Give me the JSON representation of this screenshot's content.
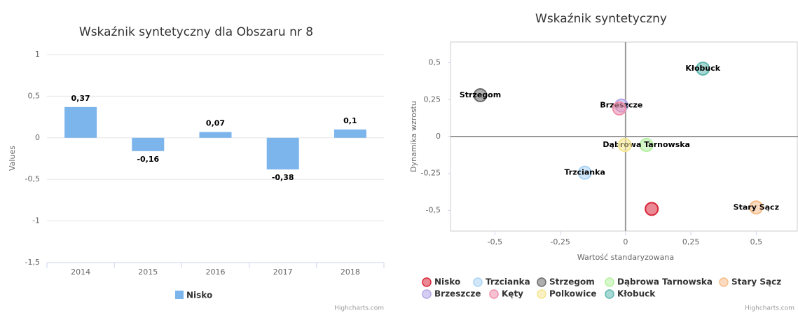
{
  "chart_data": [
    {
      "type": "bar",
      "title": "Wskaźnik syntetyczny dla Obszaru nr 8",
      "y_label": "Values",
      "categories": [
        "2014",
        "2015",
        "2016",
        "2017",
        "2018"
      ],
      "series": [
        {
          "name": "Nisko",
          "color": "#7cb5ec",
          "values": [
            0.37,
            -0.16,
            0.07,
            -0.38,
            0.1
          ],
          "value_labels": [
            "0,37",
            "-0,16",
            "0,07",
            "-0,38",
            "0,1"
          ]
        }
      ],
      "ylim": [
        -1.5,
        1
      ],
      "yticks": [
        {
          "value": -1.5,
          "label": "-1,5"
        },
        -1,
        {
          "value": -0.5,
          "label": "-0,5"
        },
        0,
        {
          "value": 0.5,
          "label": "0,5"
        },
        1
      ],
      "grid": true,
      "legend": "bottom",
      "credits": "Highcharts.com"
    },
    {
      "type": "scatter",
      "title": "Wskaźnik syntetyczny",
      "x_label": "Wartość standaryzowana",
      "y_label": "Dynamika wzrostu",
      "xlim": [
        -0.67,
        0.66
      ],
      "ylim": [
        -0.64,
        0.64
      ],
      "xticks": [
        {
          "value": -0.5,
          "label": "-0,5"
        },
        {
          "value": -0.25,
          "label": "-0,25"
        },
        0,
        {
          "value": 0.25,
          "label": "0,25"
        },
        {
          "value": 0.5,
          "label": "0,5"
        }
      ],
      "yticks": [
        {
          "value": -0.5,
          "label": "-0,5"
        },
        {
          "value": -0.25,
          "label": "-0,25"
        },
        0,
        {
          "value": 0.25,
          "label": "0,25"
        },
        {
          "value": 0.5,
          "label": "0,5"
        }
      ],
      "series": [
        {
          "name": "Nisko",
          "color": "#d9263a",
          "x": [
            0.1
          ],
          "values": [
            -0.49
          ],
          "point_label": false
        },
        {
          "name": "Trzcianka",
          "color": "#a9d3f5",
          "x": [
            -0.156
          ],
          "values": [
            -0.245
          ],
          "point_label": true
        },
        {
          "name": "Strzegom",
          "color": "#6b6b6b",
          "x": [
            -0.556
          ],
          "values": [
            0.28
          ],
          "point_label": true
        },
        {
          "name": "Dąbrowa Tarnowska",
          "color": "#b4f0a0",
          "x": [
            0.08
          ],
          "values": [
            -0.057
          ],
          "point_label": true
        },
        {
          "name": "Stary Sącz",
          "color": "#f7bd8a",
          "x": [
            0.5
          ],
          "values": [
            -0.48
          ],
          "point_label": true
        },
        {
          "name": "Brzeszcze",
          "color": "#b3a6e8",
          "x": [
            -0.016
          ],
          "values": [
            0.21
          ],
          "point_label": true
        },
        {
          "name": "Kęty",
          "color": "#ef8fac",
          "x": [
            -0.024
          ],
          "values": [
            0.19
          ],
          "point_label": false
        },
        {
          "name": "Polkowice",
          "color": "#f5e68f",
          "x": [
            -0.003
          ],
          "values": [
            -0.057
          ],
          "point_label": false
        },
        {
          "name": "Kłobuck",
          "color": "#5fb8b0",
          "x": [
            0.296
          ],
          "values": [
            0.46
          ],
          "point_label": true
        }
      ],
      "legend": "bottom",
      "credits": "Highcharts.com"
    }
  ]
}
